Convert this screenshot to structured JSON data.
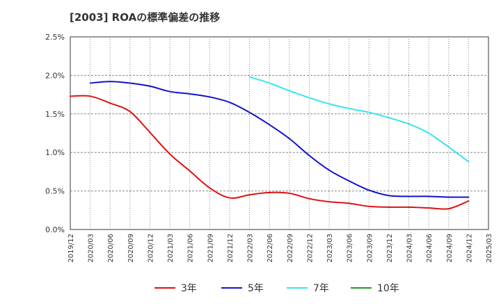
{
  "chart_data": {
    "type": "line",
    "title": "[2003]  ROAの標準偏差の推移",
    "xlabel": "",
    "ylabel": "",
    "ylim": [
      0,
      2.5
    ],
    "y_ticks": [
      "0.0%",
      "0.5%",
      "1.0%",
      "1.5%",
      "2.0%",
      "2.5%"
    ],
    "y_tick_values": [
      0,
      0.5,
      1.0,
      1.5,
      2.0,
      2.5
    ],
    "categories": [
      "2019/12",
      "2020/03",
      "2020/06",
      "2020/09",
      "2020/12",
      "2021/03",
      "2021/06",
      "2021/09",
      "2021/12",
      "2022/03",
      "2022/06",
      "2022/09",
      "2022/12",
      "2023/03",
      "2023/06",
      "2023/09",
      "2023/12",
      "2024/03",
      "2024/06",
      "2024/09",
      "2024/12",
      "2025/03"
    ],
    "grid": true,
    "legend_position": "bottom",
    "series": [
      {
        "name": "3年",
        "color": "#dd1111",
        "values": [
          1.73,
          1.73,
          1.64,
          1.53,
          1.26,
          0.98,
          0.76,
          0.54,
          0.41,
          0.45,
          0.48,
          0.47,
          0.4,
          0.36,
          0.34,
          0.3,
          0.29,
          0.29,
          0.28,
          0.27,
          0.37,
          null
        ]
      },
      {
        "name": "5年",
        "color": "#1111cc",
        "values": [
          null,
          1.9,
          1.92,
          1.9,
          1.86,
          1.79,
          1.76,
          1.72,
          1.65,
          1.52,
          1.36,
          1.18,
          0.96,
          0.77,
          0.63,
          0.51,
          0.44,
          0.43,
          0.43,
          0.42,
          0.42,
          null
        ]
      },
      {
        "name": "7年",
        "color": "#33e5f0",
        "values": [
          null,
          null,
          null,
          null,
          null,
          null,
          null,
          null,
          null,
          1.98,
          1.9,
          1.8,
          1.71,
          1.63,
          1.57,
          1.52,
          1.45,
          1.37,
          1.25,
          1.07,
          0.88,
          null
        ]
      },
      {
        "name": "10年",
        "color": "#229922",
        "values": [
          null,
          null,
          null,
          null,
          null,
          null,
          null,
          null,
          null,
          null,
          null,
          null,
          null,
          null,
          null,
          null,
          null,
          null,
          null,
          null,
          null,
          null
        ]
      }
    ]
  }
}
